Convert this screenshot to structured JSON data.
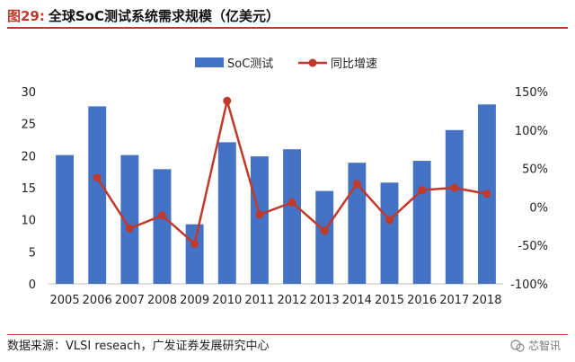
{
  "figure": {
    "label": "图29:",
    "title": "全球SoC测试系统需求规模（亿美元）",
    "source": "数据来源：VLSI reseach，广发证券发展研究中心",
    "watermark": "芯智讯"
  },
  "colors": {
    "bar": "#4472c4",
    "line": "#c0392b",
    "accent": "#c0392b"
  },
  "chart_data": {
    "type": "bar",
    "categories": [
      "2005",
      "2006",
      "2007",
      "2008",
      "2009",
      "2010",
      "2011",
      "2012",
      "2013",
      "2014",
      "2015",
      "2016",
      "2017",
      "2018"
    ],
    "series": [
      {
        "name": "SoC测试",
        "type": "bar",
        "axis": "left",
        "values": [
          20.1,
          27.7,
          20.1,
          17.9,
          9.3,
          22.1,
          19.9,
          21.0,
          14.5,
          18.9,
          15.8,
          19.2,
          24.0,
          28.0
        ]
      },
      {
        "name": "同比增速",
        "type": "line",
        "axis": "right",
        "values": [
          null,
          38,
          -28,
          -11,
          -48,
          138,
          -10,
          6,
          -31,
          30,
          -17,
          22,
          25,
          17
        ]
      }
    ],
    "y_left": {
      "min": 0,
      "max": 30,
      "ticks": [
        "0",
        "5",
        "10",
        "15",
        "20",
        "25",
        "30"
      ]
    },
    "y_right": {
      "min": -100,
      "max": 150,
      "ticks": [
        "-100%",
        "-50%",
        "0%",
        "50%",
        "100%",
        "150%"
      ]
    },
    "legend_position": "top-center",
    "grid": false
  }
}
